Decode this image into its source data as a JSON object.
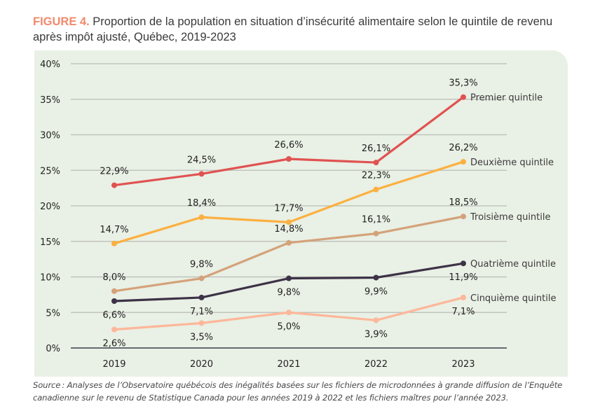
{
  "figure": {
    "number_label": "FIGURE 4.",
    "title": "Proportion de la population en situation d’insécurité alimentaire selon le quintile de revenu après impôt ajusté, Québec, 2019-2023",
    "source": "Source : Analyses de l’Observatoire québécois des inégalités basées sur les fichiers de microdonnées à grande diffusion de l’Enquête canadienne sur le revenu de Statistique Canada pour les années 2019 à 2022 et les fichiers maîtres pour l’année 2023."
  },
  "chart_data": {
    "type": "line",
    "title": "Proportion de la population en situation d’insécurité alimentaire selon le quintile de revenu après impôt ajusté, Québec, 2019-2023",
    "xlabel": "",
    "ylabel": "",
    "categories": [
      "2019",
      "2020",
      "2021",
      "2022",
      "2023"
    ],
    "ylim": [
      0,
      40
    ],
    "yticks": [
      0,
      5,
      10,
      15,
      20,
      25,
      30,
      35,
      40
    ],
    "ytick_labels": [
      "0%",
      "5%",
      "10%",
      "15%",
      "20%",
      "25%",
      "30%",
      "35%",
      "40%"
    ],
    "grid": true,
    "legend": "direct labels at line ends (right)",
    "series": [
      {
        "name": "Premier quintile",
        "color": "#e05252",
        "values": [
          22.9,
          24.5,
          26.6,
          26.1,
          35.3
        ],
        "labels": [
          "22,9%",
          "24,5%",
          "26,6%",
          "26,1%",
          "35,3%"
        ],
        "label_pos": [
          "above",
          "above",
          "above",
          "above",
          "above"
        ]
      },
      {
        "name": "Deuxième quintile",
        "color": "#fbb040",
        "values": [
          14.7,
          18.4,
          17.7,
          22.3,
          26.2
        ],
        "labels": [
          "14,7%",
          "18,4%",
          "17,7%",
          "22,3%",
          "26,2%"
        ],
        "label_pos": [
          "above",
          "above",
          "above",
          "above",
          "above"
        ]
      },
      {
        "name": "Troisième quintile",
        "color": "#d4a27a",
        "values": [
          8.0,
          9.8,
          14.8,
          16.1,
          18.5
        ],
        "labels": [
          "8,0%",
          "9,8%",
          "14,8%",
          "16,1%",
          "18,5%"
        ],
        "label_pos": [
          "above",
          "above",
          "above",
          "above",
          "above"
        ]
      },
      {
        "name": "Quatrième quintile",
        "color": "#3d3247",
        "values": [
          6.6,
          7.1,
          9.8,
          9.9,
          11.9
        ],
        "labels": [
          "6,6%",
          "7,1%",
          "9,8%",
          "9,9%",
          "11,9%"
        ],
        "label_pos": [
          "below",
          "below",
          "below",
          "below",
          "below"
        ]
      },
      {
        "name": "Cinquième quintile",
        "color": "#fdb79a",
        "values": [
          2.6,
          3.5,
          5.0,
          3.9,
          7.1
        ],
        "labels": [
          "2,6%",
          "3,5%",
          "5,0%",
          "3,9%",
          "7,1%"
        ],
        "label_pos": [
          "below",
          "below",
          "below",
          "below",
          "below"
        ]
      }
    ]
  }
}
